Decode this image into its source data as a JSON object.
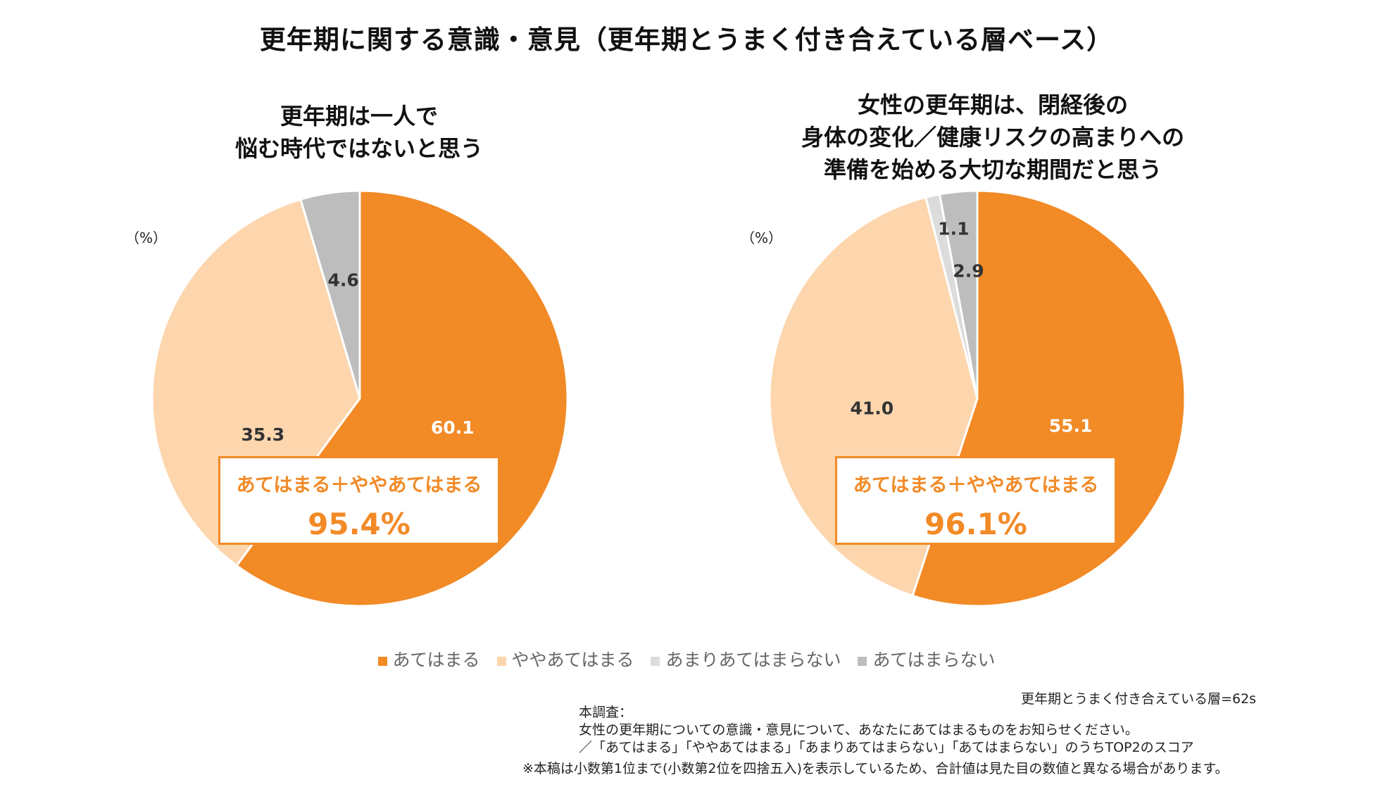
{
  "title": "更年期に関する意識・意見（更年期とうまく付き合えている層ベース）",
  "colors": {
    "atehamaru": "#f28a26",
    "yaya": "#fdd6ae",
    "amari": "#dcdcdc",
    "atehamaranai": "#bdbdbd",
    "callout": "#f28a26"
  },
  "chart_data": [
    {
      "type": "pie",
      "title_lines": [
        "更年期は一人で",
        "悩む時代ではないと思う"
      ],
      "unit": "（%）",
      "slices": [
        {
          "name": "あてはまる",
          "value": 60.1,
          "label": "60.1"
        },
        {
          "name": "ややあてはまる",
          "value": 35.3,
          "label": "35.3"
        },
        {
          "name": "あまりあてはまらない",
          "value": 0.0,
          "label": ""
        },
        {
          "name": "あてはまらない",
          "value": 4.6,
          "label": "4.6"
        }
      ],
      "callout": {
        "label": "あてはまる＋ややあてはまる",
        "value": "95.4%"
      }
    },
    {
      "type": "pie",
      "title_lines": [
        "女性の更年期は、閉経後の",
        "身体の変化／健康リスクの高まりへの",
        "準備を始める大切な期間だと思う"
      ],
      "unit": "（%）",
      "slices": [
        {
          "name": "あてはまる",
          "value": 55.1,
          "label": "55.1"
        },
        {
          "name": "ややあてはまる",
          "value": 41.0,
          "label": "41.0"
        },
        {
          "name": "あまりあてはまらない",
          "value": 1.1,
          "label": "1.1"
        },
        {
          "name": "あてはまらない",
          "value": 2.9,
          "label": "2.9"
        }
      ],
      "callout": {
        "label": "あてはまる＋ややあてはまる",
        "value": "96.1%"
      }
    }
  ],
  "legend": [
    "あてはまる",
    "ややあてはまる",
    "あまりあてはまらない",
    "あてはまらない"
  ],
  "footer": {
    "sample_size": "更年期とうまく付き合えている層=62s",
    "survey_heading": "本調査：",
    "survey_question": "女性の更年期についての意識・意見について、あなたにあてはまるものをお知らせください。",
    "survey_scale": "／「あてはまる」「ややあてはまる」「あまりあてはまらない」「あてはまらない」のうちTOP2のスコア",
    "disclaimer": "※本稿は小数第1位まで(小数第2位を四捨五入)を表示しているため、合計値は見た目の数値と異なる場合があります。"
  }
}
